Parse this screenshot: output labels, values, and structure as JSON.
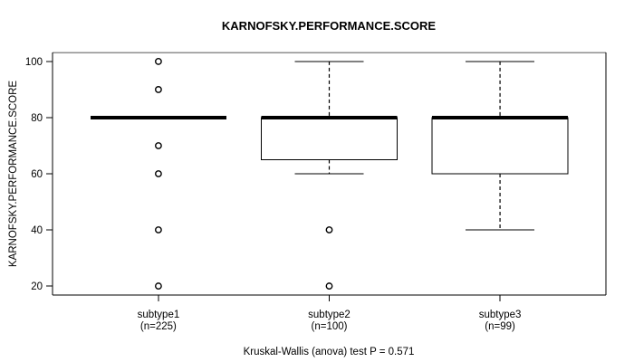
{
  "chart_data": {
    "type": "boxplot",
    "title": "KARNOFSKY.PERFORMANCE.SCORE",
    "ylabel": "KARNOFSKY.PERFORMANCE.SCORE",
    "caption": "Kruskal-Wallis (anova) test P = 0.571",
    "yticks": [
      20,
      40,
      60,
      80,
      100
    ],
    "ylim": [
      16.8,
      103.2
    ],
    "xlim": [
      0.38,
      3.62
    ],
    "grid": false,
    "legend": null,
    "groups": [
      {
        "label": "subtype1",
        "sublabel": "(n=225)",
        "position": 1,
        "median": 80,
        "q1": 80,
        "q3": 80,
        "whisker_low": 80,
        "whisker_high": 80,
        "outliers": [
          100,
          90,
          70,
          60,
          40,
          20
        ]
      },
      {
        "label": "subtype2",
        "sublabel": "(n=100)",
        "position": 2,
        "median": 80,
        "q1": 65,
        "q3": 80,
        "whisker_low": 60,
        "whisker_high": 100,
        "outliers": [
          40,
          20
        ]
      },
      {
        "label": "subtype3",
        "sublabel": "(n=99)",
        "position": 3,
        "median": 80,
        "q1": 60,
        "q3": 80,
        "whisker_low": 40,
        "whisker_high": 100,
        "outliers": []
      }
    ],
    "colors": {
      "stroke": "#000000",
      "box_fill": "#ffffff",
      "frame_top": "#8e8e8e",
      "background": "#ffffff"
    }
  }
}
